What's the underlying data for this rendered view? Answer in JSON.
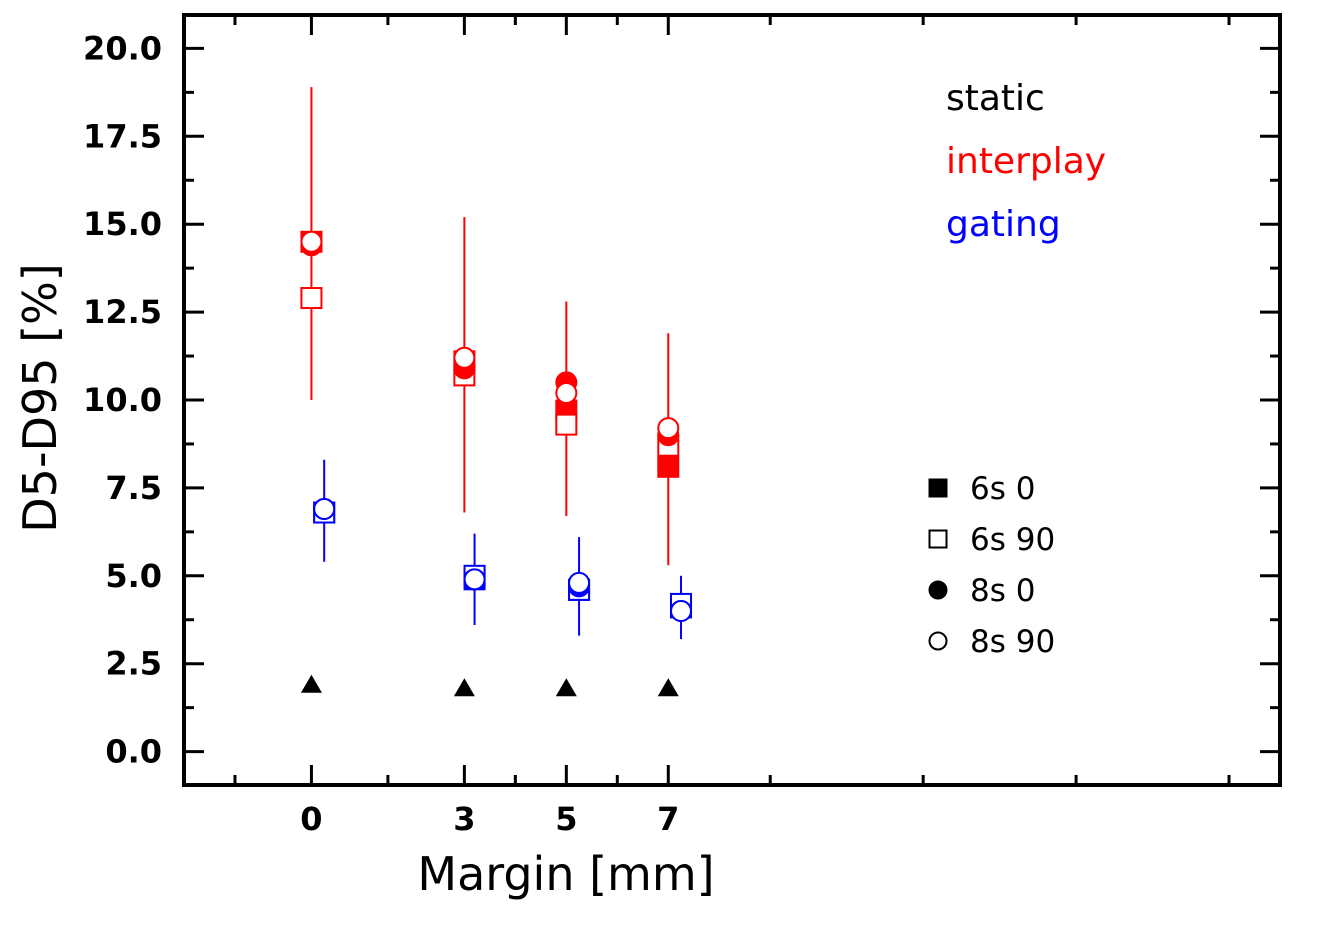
{
  "chart_data": {
    "type": "scatter",
    "xlabel": "Margin [mm]",
    "ylabel": "D5-D95 [%]",
    "xlim": [
      -2.5,
      19
    ],
    "ylim": [
      -0.95,
      20.95
    ],
    "x_ticks": [
      0,
      3,
      5,
      7
    ],
    "x_tick_labels": [
      "0",
      "3",
      "5",
      "7"
    ],
    "x_minor_ticks": [
      -1.5,
      1.5,
      4,
      6,
      9,
      12,
      15,
      18
    ],
    "y_ticks": [
      0,
      2.5,
      5,
      7.5,
      10,
      12.5,
      15,
      17.5,
      20
    ],
    "y_tick_labels": [
      "0.0",
      "2.5",
      "5.0",
      "7.5",
      "10.0",
      "12.5",
      "15.0",
      "17.5",
      "20.0"
    ],
    "grid": false,
    "color_legend": {
      "position": "top-right",
      "entries": [
        {
          "label": "static",
          "color": "#000000"
        },
        {
          "label": "interplay",
          "color": "#ff0000"
        },
        {
          "label": "gating",
          "color": "#0000ff"
        }
      ]
    },
    "marker_legend": {
      "position": "right",
      "entries": [
        {
          "label": "6s 0",
          "marker": "square-filled"
        },
        {
          "label": "6s 90",
          "marker": "square-open"
        },
        {
          "label": "8s 0",
          "marker": "circle-filled"
        },
        {
          "label": "8s 90",
          "marker": "circle-open"
        }
      ]
    },
    "series": [
      {
        "group": "interplay",
        "marker": "square-filled",
        "color": "#ff0000",
        "x": [
          0,
          3,
          5,
          7
        ],
        "y": [
          14.5,
          11.1,
          9.7,
          8.1
        ]
      },
      {
        "group": "interplay",
        "marker": "square-open",
        "color": "#ff0000",
        "x": [
          0,
          3,
          5,
          7
        ],
        "y": [
          12.9,
          10.7,
          9.3,
          8.7
        ]
      },
      {
        "group": "interplay",
        "marker": "circle-filled",
        "color": "#ff0000",
        "x": [
          0,
          3,
          5,
          7
        ],
        "y": [
          14.4,
          10.9,
          10.5,
          9.0
        ]
      },
      {
        "group": "interplay",
        "marker": "circle-open",
        "color": "#ff0000",
        "x": [
          0,
          3,
          5,
          7
        ],
        "y": [
          14.5,
          11.2,
          10.2,
          9.2
        ]
      },
      {
        "group": "gating",
        "marker": "square-filled",
        "color": "#0000ff",
        "x": [
          0.25,
          3.2,
          5.25,
          7.25
        ],
        "y": [
          6.8,
          4.9,
          4.6,
          4.1
        ]
      },
      {
        "group": "gating",
        "marker": "square-open",
        "color": "#0000ff",
        "x": [
          0.25,
          3.2,
          5.25,
          7.25
        ],
        "y": [
          6.8,
          5.0,
          4.6,
          4.2
        ]
      },
      {
        "group": "gating",
        "marker": "circle-filled",
        "color": "#0000ff",
        "x": [
          0.25,
          3.2,
          5.25,
          7.25
        ],
        "y": [
          6.9,
          4.9,
          4.7,
          4.0
        ]
      },
      {
        "group": "gating",
        "marker": "circle-open",
        "color": "#0000ff",
        "x": [
          0.25,
          3.2,
          5.25,
          7.25
        ],
        "y": [
          6.9,
          4.9,
          4.8,
          4.0
        ]
      },
      {
        "group": "static",
        "marker": "triangle-filled",
        "color": "#000000",
        "x": [
          0,
          3,
          5,
          7
        ],
        "y": [
          1.9,
          1.8,
          1.8,
          1.8
        ]
      }
    ],
    "error_bars": [
      {
        "group": "interplay",
        "color": "#ff0000",
        "x": [
          0,
          3,
          5,
          7
        ],
        "low": [
          10.0,
          6.8,
          6.7,
          5.3
        ],
        "high": [
          18.9,
          15.2,
          12.8,
          11.9
        ]
      },
      {
        "group": "gating",
        "color": "#0000ff",
        "x": [
          0.25,
          3.2,
          5.25,
          7.25
        ],
        "low": [
          5.4,
          3.6,
          3.3,
          3.2
        ],
        "high": [
          8.3,
          6.2,
          6.1,
          5.0
        ]
      }
    ]
  }
}
